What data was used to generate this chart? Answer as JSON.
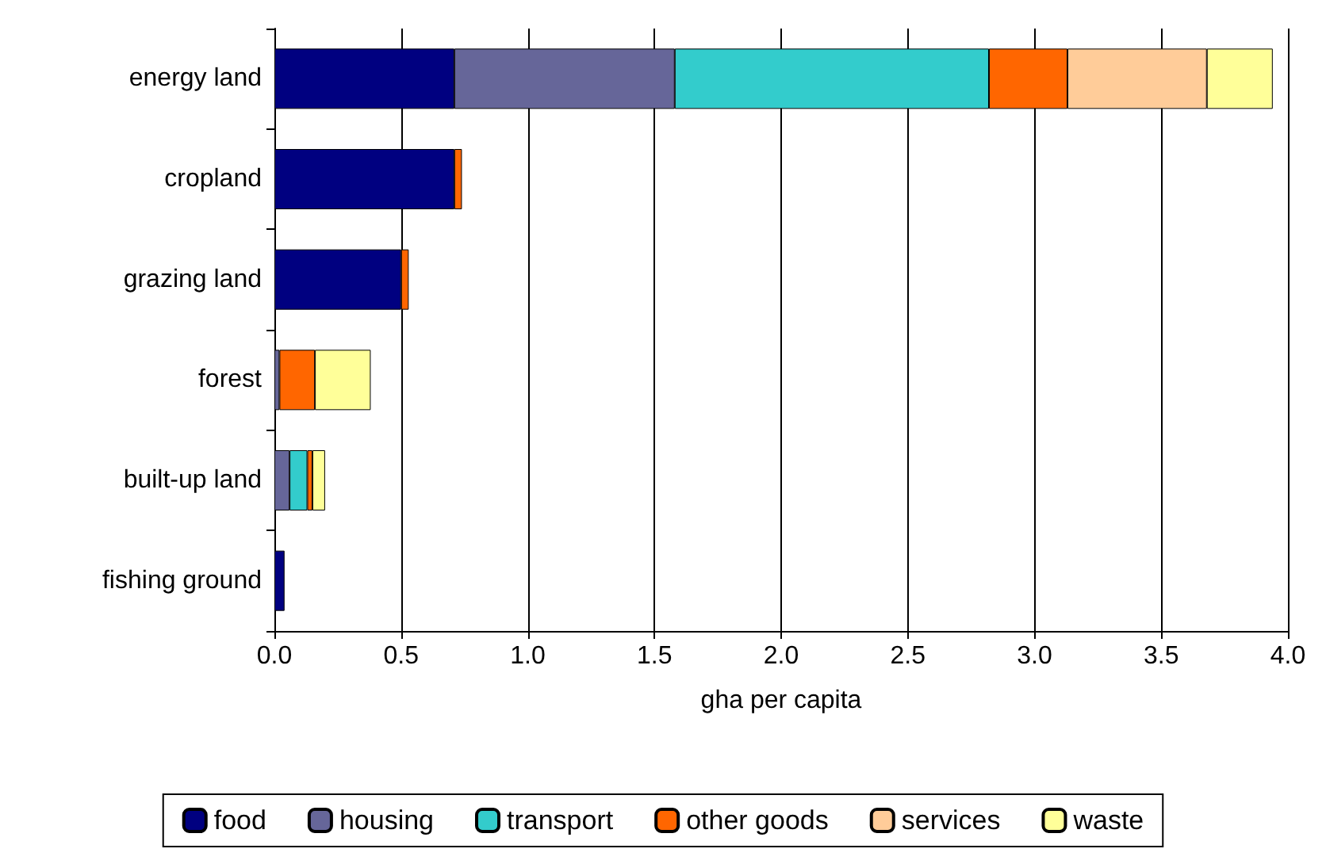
{
  "chart_data": {
    "type": "bar",
    "orientation": "horizontal",
    "stacked": true,
    "xlabel": "gha per capita",
    "categories": [
      "energy land",
      "cropland",
      "grazing land",
      "forest",
      "built-up land",
      "fishing ground"
    ],
    "series": [
      {
        "name": "food",
        "color": "#000080",
        "values": [
          0.71,
          0.71,
          0.5,
          null,
          null,
          0.04
        ]
      },
      {
        "name": "housing",
        "color": "#666699",
        "values": [
          0.87,
          null,
          null,
          0.02,
          0.06,
          null
        ]
      },
      {
        "name": "transport",
        "color": "#33cccc",
        "values": [
          1.24,
          null,
          null,
          null,
          0.07,
          null
        ]
      },
      {
        "name": "other goods",
        "color": "#ff6600",
        "values": [
          0.31,
          0.03,
          0.03,
          0.14,
          0.02,
          null
        ]
      },
      {
        "name": "services",
        "color": "#ffcc99",
        "values": [
          0.55,
          null,
          null,
          null,
          null,
          null
        ]
      },
      {
        "name": "waste",
        "color": "#ffff99",
        "values": [
          0.26,
          null,
          null,
          0.22,
          0.05,
          null
        ]
      }
    ],
    "xlim": [
      0,
      4
    ],
    "xticks": [
      {
        "value": 0,
        "label": "0.0"
      },
      {
        "value": 0.5,
        "label": "0.5"
      },
      {
        "value": 1,
        "label": "1.0"
      },
      {
        "value": 1.5,
        "label": "1.5"
      },
      {
        "value": 2,
        "label": "2.0"
      },
      {
        "value": 2.5,
        "label": "2.5"
      },
      {
        "value": 3,
        "label": "3.0"
      },
      {
        "value": 3.5,
        "label": "3.5"
      },
      {
        "value": 4,
        "label": "4.0"
      }
    ],
    "grid": "x",
    "legend": "bottom"
  }
}
